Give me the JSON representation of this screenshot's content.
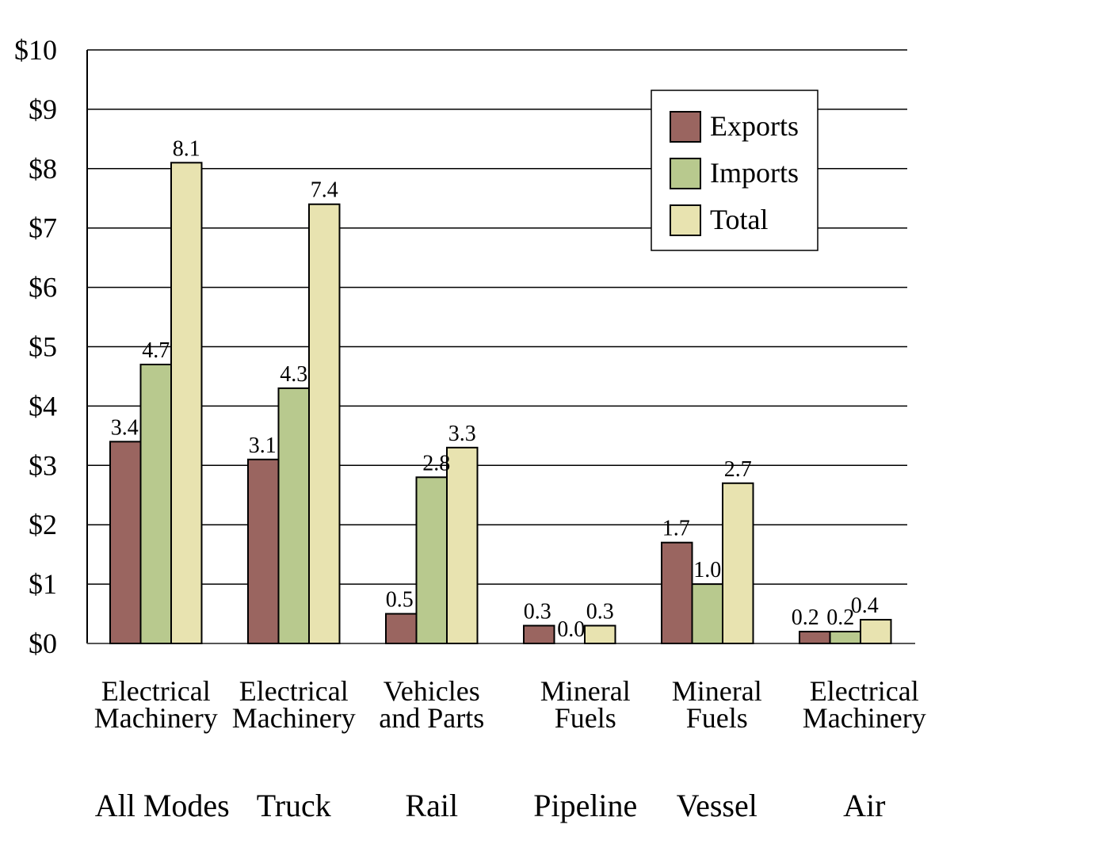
{
  "chart_data": {
    "type": "bar",
    "title": "",
    "xlabel": "",
    "ylabel": "",
    "ylim": [
      0,
      10
    ],
    "yticks": [
      "$0",
      "$1",
      "$2",
      "$3",
      "$4",
      "$5",
      "$6",
      "$7",
      "$8",
      "$9",
      "$10"
    ],
    "grid": true,
    "legend_position": "top-right",
    "categories": [
      {
        "commodity": [
          "Electrical",
          "Machinery"
        ],
        "mode": "All Modes"
      },
      {
        "commodity": [
          "Electrical",
          "Machinery"
        ],
        "mode": "Truck"
      },
      {
        "commodity": [
          "Vehicles",
          "and Parts"
        ],
        "mode": "Rail"
      },
      {
        "commodity": [
          "Mineral",
          "Fuels"
        ],
        "mode": "Pipeline"
      },
      {
        "commodity": [
          "Mineral",
          "Fuels"
        ],
        "mode": "Vessel"
      },
      {
        "commodity": [
          "Electrical",
          "Machinery"
        ],
        "mode": "Air"
      }
    ],
    "series": [
      {
        "name": "Exports",
        "color": "#9a6560",
        "values": [
          3.4,
          3.1,
          0.5,
          0.3,
          1.7,
          0.2
        ],
        "labels": [
          "3.4",
          "3.1",
          "0.5",
          "0.3",
          "1.7",
          "0.2"
        ]
      },
      {
        "name": "Imports",
        "color": "#b8c98e",
        "values": [
          4.7,
          4.3,
          2.8,
          0.0,
          1.0,
          0.2
        ],
        "labels": [
          "4.7",
          "4.3",
          "2.8",
          "0.0",
          "1.0",
          "0.2"
        ]
      },
      {
        "name": "Total",
        "color": "#e8e3b0",
        "values": [
          8.1,
          7.4,
          3.3,
          0.3,
          2.7,
          0.4
        ],
        "labels": [
          "8.1",
          "7.4",
          "3.3",
          "0.3",
          "2.7",
          "0.4"
        ]
      }
    ]
  }
}
